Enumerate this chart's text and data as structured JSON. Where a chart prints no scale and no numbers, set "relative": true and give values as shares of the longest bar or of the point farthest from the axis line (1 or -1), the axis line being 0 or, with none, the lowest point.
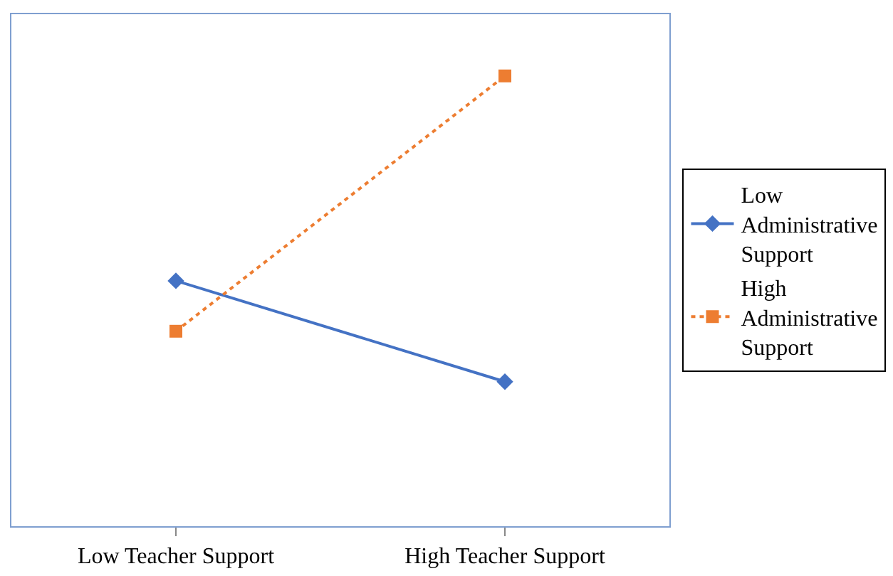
{
  "chart_data": {
    "type": "line",
    "relative": true,
    "categories": [
      "Low Teacher Support",
      "High Teacher Support"
    ],
    "series": [
      {
        "name": "Low Administrative Support",
        "color": "#4472c4",
        "values": [
          0.545,
          0.321
        ],
        "marker": "diamond",
        "line_style": "solid"
      },
      {
        "name": "High Administrative Support",
        "color": "#ed7d31",
        "values": [
          0.433,
          1.0
        ],
        "marker": "square",
        "line_style": "dotted"
      }
    ],
    "legend": "right"
  }
}
